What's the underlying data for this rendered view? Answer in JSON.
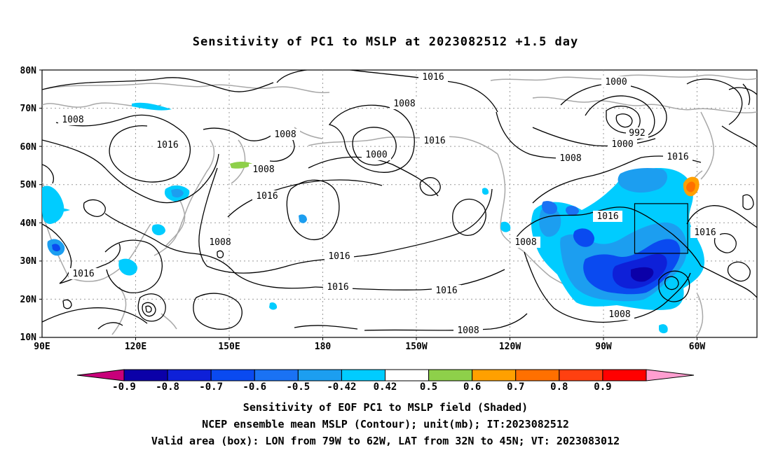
{
  "title": "Sensitivity of PC1 to MSLP at 2023082512 +1.5 day",
  "lat_labels": [
    "80N",
    "70N",
    "60N",
    "50N",
    "40N",
    "30N",
    "20N",
    "10N"
  ],
  "lon_labels": [
    "90E",
    "120E",
    "150E",
    "180",
    "150W",
    "120W",
    "90W",
    "60W"
  ],
  "contour_labels": [
    "1016",
    "1008",
    "1000",
    "1016",
    "1000",
    "992",
    "1000",
    "1008",
    "1016",
    "1008",
    "1016",
    "1008",
    "1016",
    "1016",
    "1008",
    "1016",
    "1016",
    "1016",
    "1008",
    "1016",
    "1008",
    "1016",
    "1008",
    "1008"
  ],
  "colorbar": {
    "labels": [
      "-0.9",
      "-0.8",
      "-0.7",
      "-0.6",
      "-0.5",
      "-0.42",
      "0.42",
      "0.5",
      "0.6",
      "0.7",
      "0.8",
      "0.9"
    ],
    "colors": [
      "#0b00a8",
      "#0e20d8",
      "#0a4af0",
      "#1a72f4",
      "#1c9ef0",
      "#00ccff",
      "#ffffff",
      "#8ed04a",
      "#ffa000",
      "#ff7000",
      "#ff4010",
      "#ff0000"
    ],
    "low_extension_color": "#c8007a",
    "high_extension_color": "#ff9ed0"
  },
  "captions": [
    "Sensitivity of EOF PC1 to MSLP field (Shaded)",
    "NCEP ensemble mean MSLP (Contour); unit(mb); IT:2023082512",
    "Valid area (box): LON from 79W to 62W, LAT from 32N to 45N; VT: 2023083012"
  ],
  "valid_box": {
    "lon_min": -79,
    "lon_max": -62,
    "lat_min": 32,
    "lat_max": 45
  }
}
